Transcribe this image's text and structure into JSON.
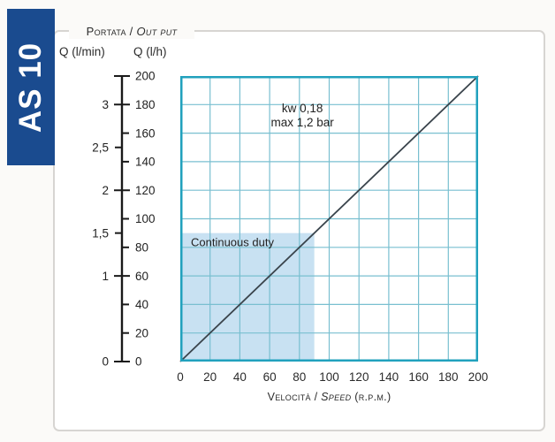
{
  "badge": {
    "label": "AS 10",
    "bg": "#1a4b8f",
    "fg": "#ffffff"
  },
  "header": {
    "flow_title_normal": "Portata / ",
    "flow_title_italic": "Out put",
    "unit_lmin": "Q (l/min)",
    "unit_lh": "Q (l/h)"
  },
  "chart_data": {
    "type": "line",
    "title": "",
    "x_label_normal": "Velocità / ",
    "x_label_italic": "Speed",
    "x_label_suffix": " (r.p.m.)",
    "x_range": [
      0,
      200
    ],
    "y_range": [
      0,
      200
    ],
    "x_ticks": [
      0,
      20,
      40,
      60,
      80,
      100,
      120,
      140,
      160,
      180,
      200
    ],
    "grid_step": 20,
    "y_axis": {
      "lh_ticks": [
        0,
        20,
        40,
        60,
        80,
        100,
        120,
        140,
        160,
        180,
        200
      ],
      "lmin_ticks": [
        {
          "label": "0",
          "at": 0
        },
        {
          "label": "1",
          "at": 60
        },
        {
          "label": "1,5",
          "at": 90
        },
        {
          "label": "2",
          "at": 120
        },
        {
          "label": "2,5",
          "at": 150
        },
        {
          "label": "3",
          "at": 180
        }
      ],
      "cross_ticks": [
        0,
        60,
        120,
        180,
        200
      ],
      "right_ticks": [
        20,
        40,
        80,
        100,
        140,
        160
      ],
      "left_ticks": [
        90,
        150
      ]
    },
    "series": [
      {
        "name": "flow-vs-speed",
        "points": [
          [
            0,
            0
          ],
          [
            200,
            200
          ]
        ],
        "color": "#3a444c"
      }
    ],
    "annotation": {
      "lines": [
        "kw 0,18",
        "max 1,2 bar"
      ],
      "at": [
        82,
        172
      ]
    },
    "continuous_duty": {
      "label": "Continuous duty",
      "x_max": 90,
      "y_max": 90,
      "fill": "#c8e1f2"
    },
    "colors": {
      "grid": "#79bfd0",
      "border": "#21a1bd",
      "axis": "#1a1a1a",
      "text": "#222222",
      "badge_bg": "#1a4b8f"
    }
  }
}
